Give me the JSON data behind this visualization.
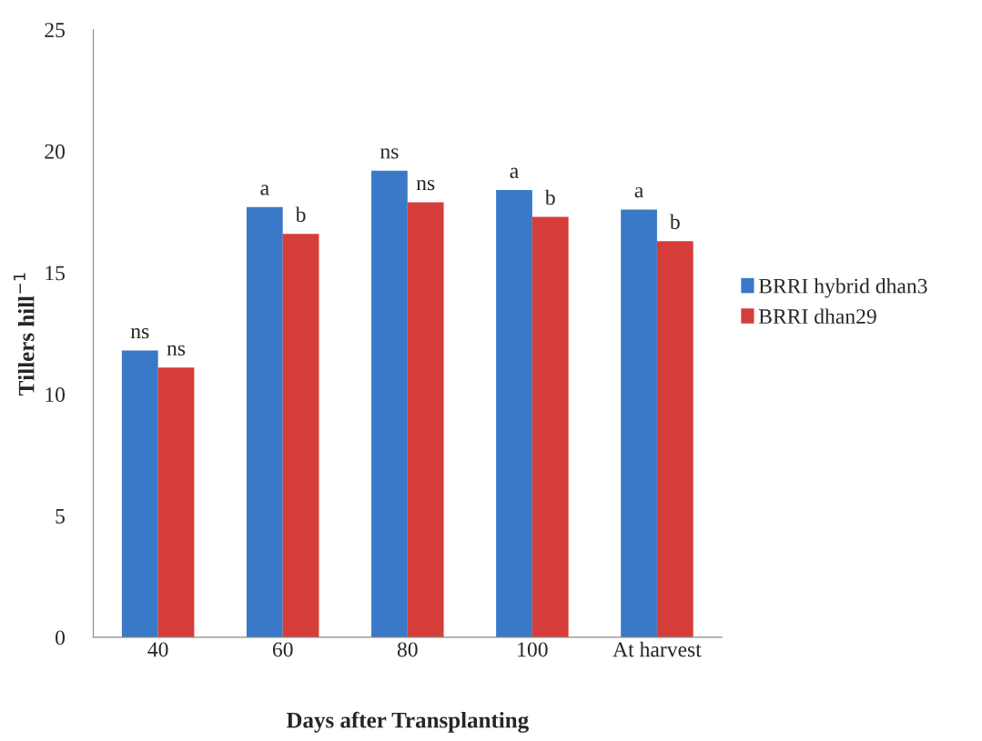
{
  "chart_data": {
    "type": "bar",
    "xlabel": "Days after Transplanting",
    "ylabel": "Tillers hill$^{−1}$",
    "categories": [
      "40",
      "60",
      "80",
      "100",
      "At harvest"
    ],
    "series": [
      {
        "name": "BRRI hybrid dhan3",
        "color": "#3a78c8",
        "values": [
          11.8,
          17.7,
          19.2,
          18.4,
          17.6
        ],
        "value_labels": [
          "ns",
          "a",
          "ns",
          "a",
          "a"
        ]
      },
      {
        "name": "BRRI dhan29",
        "color": "#d63d3a",
        "values": [
          11.1,
          16.6,
          17.9,
          17.3,
          16.3
        ],
        "value_labels": [
          "ns",
          "b",
          "ns",
          "b",
          "b"
        ]
      }
    ],
    "ylim": [
      0,
      25
    ],
    "yticks": [
      0,
      5,
      10,
      15,
      20,
      25
    ],
    "grid": false,
    "legend": "right"
  }
}
